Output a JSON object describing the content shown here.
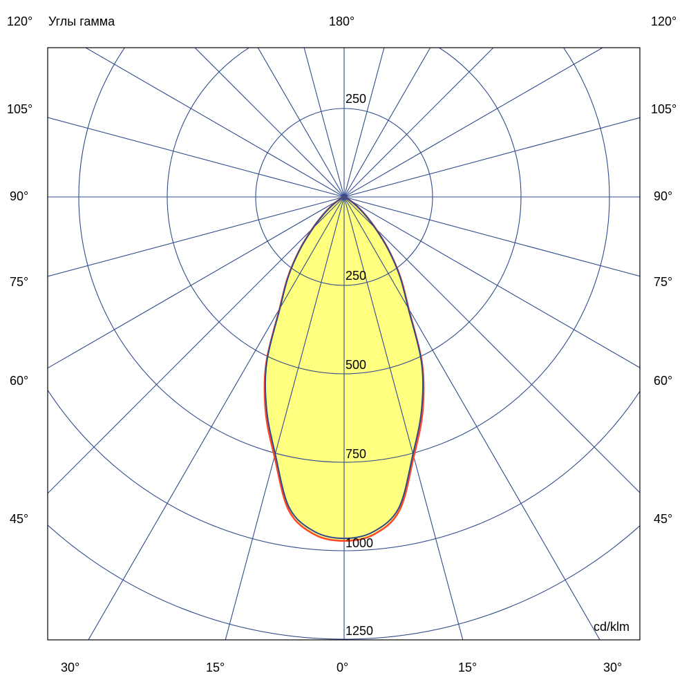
{
  "title": "Углы гамма",
  "top_label": "180°",
  "unit_label": "cd/klm",
  "colors": {
    "grid": "#2f4a8c",
    "fill": "#ffff80",
    "curve_primary": "#2f4a8c",
    "curve_secondary": "#ff4a2a",
    "frame": "#000000"
  },
  "chart_data": {
    "type": "polar",
    "angle_unit": "deg",
    "radial_axis": {
      "min": 0,
      "max": 1250,
      "ticks": [
        250,
        500,
        750,
        1000,
        1250
      ],
      "tick_labels": [
        "250",
        "500",
        "750",
        "1000",
        "1250"
      ],
      "top_tick_label": "250",
      "unit": "cd/klm"
    },
    "angular_grid_step": 15,
    "left_labels": [
      "120°",
      "105°",
      "90°",
      "75°",
      "60°",
      "45°"
    ],
    "right_labels": [
      "120°",
      "105°",
      "90°",
      "75°",
      "60°",
      "45°"
    ],
    "bottom_labels": [
      "30°",
      "15°",
      "0°",
      "15°",
      "30°"
    ],
    "gamma": [
      0,
      5,
      10,
      15,
      20,
      25,
      30,
      35,
      40,
      45,
      50,
      55,
      60,
      65,
      70,
      75,
      80,
      90
    ],
    "series": [
      {
        "color": "#ff4a2a",
        "values": [
          972,
          958,
          900,
          760,
          648,
          522,
          365,
          278,
          197,
          126,
          76,
          41,
          19,
          8,
          3,
          1,
          0,
          0
        ]
      },
      {
        "color": "#2f4a8c",
        "values": [
          965,
          950,
          892,
          752,
          640,
          518,
          362,
          275,
          195,
          124,
          75,
          40,
          18,
          8,
          3,
          1,
          0,
          0
        ]
      }
    ],
    "grid": true
  }
}
